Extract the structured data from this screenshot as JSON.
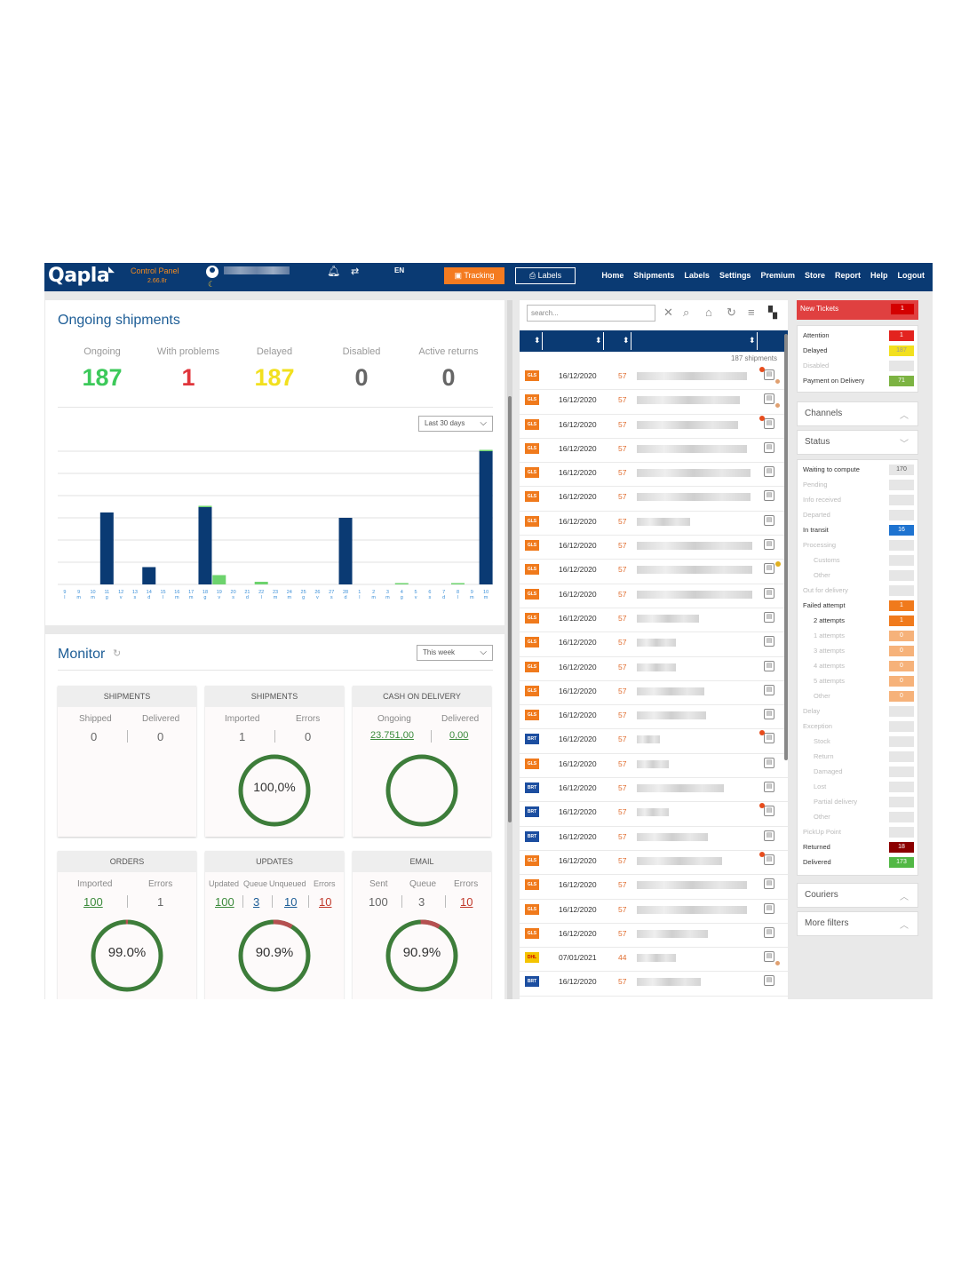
{
  "topbar": {
    "logo": "Qapla",
    "logo_sup": "◣",
    "control_panel": "Control Panel",
    "version": "2.66.8r",
    "lang": "EN",
    "tracking": "Tracking",
    "labels": "Labels",
    "nav": [
      "Home",
      "Shipments",
      "Labels",
      "Settings",
      "Premium",
      "Store",
      "Report",
      "Help",
      "Logout"
    ]
  },
  "ongoing": {
    "title": "Ongoing shipments",
    "stats": [
      {
        "label": "Ongoing",
        "value": "187",
        "color": "#3cc95a"
      },
      {
        "label": "With problems",
        "value": "1",
        "color": "#e0353b"
      },
      {
        "label": "Delayed",
        "value": "187",
        "color": "#f2e01e"
      },
      {
        "label": "Disabled",
        "value": "0",
        "color": "#666666"
      },
      {
        "label": "Active returns",
        "value": "0",
        "color": "#666666"
      }
    ],
    "period": "Last 30 days"
  },
  "chart_data": {
    "type": "bar",
    "categories": [
      "9 l",
      "9 m",
      "10 m",
      "11 g",
      "12 v",
      "13 s",
      "14 d",
      "15 l",
      "16 m",
      "17 m",
      "18 g",
      "19 v",
      "20 s",
      "21 d",
      "22 l",
      "23 m",
      "24 m",
      "25 g",
      "26 v",
      "27 s",
      "28 d",
      "1 l",
      "2 m",
      "3 m",
      "4 g",
      "5 v",
      "6 s",
      "7 d",
      "8 l",
      "9 m",
      "10 m"
    ],
    "series": [
      {
        "values": [
          0,
          0,
          0,
          54,
          0,
          0,
          13,
          0,
          0,
          0,
          58,
          0,
          0,
          0,
          0,
          0,
          0,
          0,
          0,
          0,
          50,
          0,
          0,
          0,
          0,
          0,
          0,
          0,
          0,
          0,
          100
        ],
        "color": "#0a3a73"
      },
      {
        "values": [
          0,
          0,
          0,
          0,
          0,
          0,
          0,
          0,
          0,
          0,
          1,
          7,
          0,
          0,
          2,
          0,
          0,
          0,
          0,
          0,
          0,
          0,
          0,
          0,
          1,
          0,
          0,
          0,
          1,
          0,
          1
        ],
        "color": "#6dd36d"
      }
    ]
  },
  "monitor": {
    "title": "Monitor",
    "refresh_icon": "refresh-icon",
    "period": "This week",
    "cards": {
      "shipments1": {
        "title": "SHIPMENTS",
        "l1": "Shipped",
        "l2": "Delivered",
        "v1": "0",
        "v2": "0"
      },
      "shipments2": {
        "title": "SHIPMENTS",
        "l1": "Imported",
        "l2": "Errors",
        "v1": "1",
        "v2": "0",
        "pct": "100,0%"
      },
      "cod": {
        "title": "CASH ON DELIVERY",
        "l1": "Ongoing",
        "l2": "Delivered",
        "v1": "23.751,00",
        "v2": "0,00"
      },
      "orders": {
        "title": "ORDERS",
        "l1": "Imported",
        "l2": "Errors",
        "v1": "100",
        "v2": "1",
        "pct": "99.0%"
      },
      "updates": {
        "title": "UPDATES",
        "l1": "Updated",
        "l2": "Queue",
        "l3": "Unqueued",
        "l4": "Errors",
        "v1": "100",
        "v2": "3",
        "v3": "10",
        "v4": "10",
        "pct": "90.9%"
      },
      "email": {
        "title": "EMAIL",
        "l1": "Sent",
        "l2": "Queue",
        "l3": "Errors",
        "v1": "100",
        "v2": "3",
        "v3": "10",
        "pct": "90.9%"
      }
    }
  },
  "list": {
    "search_placeholder": "search...",
    "count": "187 shipments",
    "rows": [
      {
        "courier": "gls",
        "date": "16/12/2020",
        "num": "57"
      },
      {
        "courier": "gls",
        "date": "16/12/2020",
        "num": "57"
      },
      {
        "courier": "gls",
        "date": "16/12/2020",
        "num": "57"
      },
      {
        "courier": "gls",
        "date": "16/12/2020",
        "num": "57"
      },
      {
        "courier": "gls",
        "date": "16/12/2020",
        "num": "57"
      },
      {
        "courier": "gls",
        "date": "16/12/2020",
        "num": "57"
      },
      {
        "courier": "gls",
        "date": "16/12/2020",
        "num": "57"
      },
      {
        "courier": "gls",
        "date": "16/12/2020",
        "num": "57"
      },
      {
        "courier": "gls",
        "date": "16/12/2020",
        "num": "57"
      },
      {
        "courier": "gls",
        "date": "16/12/2020",
        "num": "57"
      },
      {
        "courier": "gls",
        "date": "16/12/2020",
        "num": "57"
      },
      {
        "courier": "gls",
        "date": "16/12/2020",
        "num": "57"
      },
      {
        "courier": "gls",
        "date": "16/12/2020",
        "num": "57"
      },
      {
        "courier": "gls",
        "date": "16/12/2020",
        "num": "57"
      },
      {
        "courier": "gls",
        "date": "16/12/2020",
        "num": "57"
      },
      {
        "courier": "brt",
        "date": "16/12/2020",
        "num": "57"
      },
      {
        "courier": "gls",
        "date": "16/12/2020",
        "num": "57"
      },
      {
        "courier": "brt",
        "date": "16/12/2020",
        "num": "57"
      },
      {
        "courier": "brt",
        "date": "16/12/2020",
        "num": "57"
      },
      {
        "courier": "brt",
        "date": "16/12/2020",
        "num": "57"
      },
      {
        "courier": "gls",
        "date": "16/12/2020",
        "num": "57"
      },
      {
        "courier": "gls",
        "date": "16/12/2020",
        "num": "57"
      },
      {
        "courier": "gls",
        "date": "16/12/2020",
        "num": "57"
      },
      {
        "courier": "gls",
        "date": "16/12/2020",
        "num": "57"
      },
      {
        "courier": "dhl",
        "date": "07/01/2021",
        "num": "44"
      },
      {
        "courier": "brt",
        "date": "16/12/2020",
        "num": "57"
      }
    ]
  },
  "filters": {
    "tickets": {
      "label": "New Tickets",
      "count": "1"
    },
    "alerts": [
      {
        "label": "Attention",
        "count": "1",
        "color": "#e3231f",
        "dim": false
      },
      {
        "label": "Delayed",
        "count": "187",
        "color": "#f2e01e",
        "dim": false
      },
      {
        "label": "Disabled",
        "count": "0",
        "color": "#e6e6e6",
        "dim": true
      },
      {
        "label": "Payment on Delivery",
        "count": "71",
        "color": "#7cb342",
        "dim": false
      }
    ],
    "channels": "Channels",
    "status": "Status",
    "status_items": [
      {
        "label": "Waiting to compute",
        "count": "170",
        "color": "#e6e6e6",
        "dim": false,
        "ind": false,
        "dark": true
      },
      {
        "label": "Pending",
        "count": "0",
        "color": "#e6e6e6",
        "dim": true,
        "ind": false
      },
      {
        "label": "Info received",
        "count": "0",
        "color": "#e6e6e6",
        "dim": true,
        "ind": false
      },
      {
        "label": "Departed",
        "count": "0",
        "color": "#e6e6e6",
        "dim": true,
        "ind": false
      },
      {
        "label": "In transit",
        "count": "16",
        "color": "#1e73d0",
        "dim": false,
        "ind": false
      },
      {
        "label": "Processing",
        "count": "0",
        "color": "#e6e6e6",
        "dim": true,
        "ind": false
      },
      {
        "label": "Customs",
        "count": "0",
        "color": "#e6e6e6",
        "dim": true,
        "ind": true
      },
      {
        "label": "Other",
        "count": "0",
        "color": "#e6e6e6",
        "dim": true,
        "ind": true
      },
      {
        "label": "Out for delivery",
        "count": "0",
        "color": "#e6e6e6",
        "dim": true,
        "ind": false
      },
      {
        "label": "Failed attempt",
        "count": "1",
        "color": "#f07a1c",
        "dim": false,
        "ind": false
      },
      {
        "label": "2 attempts",
        "count": "1",
        "color": "#f07a1c",
        "dim": false,
        "ind": true
      },
      {
        "label": "1 attempts",
        "count": "0",
        "color": "#f6b27a",
        "dim": true,
        "ind": true
      },
      {
        "label": "3 attempts",
        "count": "0",
        "color": "#f6b27a",
        "dim": true,
        "ind": true
      },
      {
        "label": "4 attempts",
        "count": "0",
        "color": "#f6b27a",
        "dim": true,
        "ind": true
      },
      {
        "label": "5 attempts",
        "count": "0",
        "color": "#f6b27a",
        "dim": true,
        "ind": true
      },
      {
        "label": "Other",
        "count": "0",
        "color": "#f6b27a",
        "dim": true,
        "ind": true
      },
      {
        "label": "Delay",
        "count": "0",
        "color": "#e6e6e6",
        "dim": true,
        "ind": false
      },
      {
        "label": "Exception",
        "count": "0",
        "color": "#e6e6e6",
        "dim": true,
        "ind": false
      },
      {
        "label": "Stock",
        "count": "0",
        "color": "#e6e6e6",
        "dim": true,
        "ind": true
      },
      {
        "label": "Return",
        "count": "0",
        "color": "#e6e6e6",
        "dim": true,
        "ind": true
      },
      {
        "label": "Damaged",
        "count": "0",
        "color": "#e6e6e6",
        "dim": true,
        "ind": true
      },
      {
        "label": "Lost",
        "count": "0",
        "color": "#e6e6e6",
        "dim": true,
        "ind": true
      },
      {
        "label": "Partial delivery",
        "count": "0",
        "color": "#e6e6e6",
        "dim": true,
        "ind": true
      },
      {
        "label": "Other",
        "count": "0",
        "color": "#e6e6e6",
        "dim": true,
        "ind": true
      },
      {
        "label": "PickUp Point",
        "count": "0",
        "color": "#e6e6e6",
        "dim": true,
        "ind": false
      },
      {
        "label": "Returned",
        "count": "18",
        "color": "#8b0000",
        "dim": false,
        "ind": false
      },
      {
        "label": "Delivered",
        "count": "173",
        "color": "#52b845",
        "dim": false,
        "ind": false
      }
    ],
    "couriers": "Couriers",
    "more": "More filters"
  }
}
